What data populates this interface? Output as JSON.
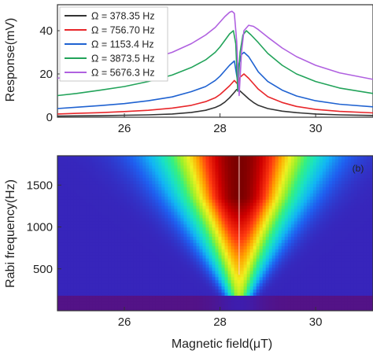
{
  "chart_data": [
    {
      "type": "line",
      "xlabel": "",
      "ylabel": "Response(mV)",
      "xlim": [
        24.6,
        31.2
      ],
      "ylim": [
        0,
        52
      ],
      "xticks": [
        26,
        28,
        30
      ],
      "xtick_labels": [
        "26",
        "28",
        "30"
      ],
      "yticks": [
        0,
        20,
        40
      ],
      "ytick_labels": [
        "0",
        "20",
        "40"
      ],
      "legend_position": "top-left",
      "series": [
        {
          "name": "Ω = 378.35 Hz",
          "color": "#333333",
          "x": [
            24.6,
            25.0,
            25.5,
            26.0,
            26.5,
            27.0,
            27.4,
            27.7,
            27.9,
            28.0,
            28.1,
            28.2,
            28.3,
            28.35,
            28.4,
            28.5,
            28.6,
            28.7,
            28.8,
            29.0,
            29.3,
            29.6,
            30.0,
            30.5,
            31.2
          ],
          "y": [
            0.5,
            0.6,
            0.7,
            0.9,
            1.1,
            1.5,
            2.2,
            3.2,
            4.5,
            5.5,
            7.0,
            9.0,
            11.5,
            12.8,
            12.5,
            10.5,
            8.5,
            6.8,
            5.5,
            4.0,
            2.8,
            2.1,
            1.5,
            1.1,
            0.8
          ]
        },
        {
          "name": "Ω = 756.70 Hz",
          "color": "#e8262a",
          "x": [
            24.6,
            25.0,
            25.5,
            26.0,
            26.5,
            27.0,
            27.4,
            27.7,
            27.9,
            28.0,
            28.1,
            28.2,
            28.3,
            28.38,
            28.42,
            28.5,
            28.6,
            28.7,
            28.8,
            29.0,
            29.3,
            29.6,
            30.0,
            30.5,
            31.2
          ],
          "y": [
            1.5,
            1.8,
            2.1,
            2.6,
            3.2,
            4.2,
            5.5,
            7.2,
            9.0,
            10.5,
            12.5,
            14.5,
            17.0,
            15.0,
            18.5,
            20.0,
            18.0,
            15.5,
            13.0,
            9.5,
            6.8,
            5.0,
            3.6,
            2.7,
            2.0
          ]
        },
        {
          "name": "Ω = 1153.4 Hz",
          "color": "#1f62d1",
          "x": [
            24.6,
            25.0,
            25.5,
            26.0,
            26.5,
            27.0,
            27.4,
            27.7,
            27.9,
            28.0,
            28.1,
            28.2,
            28.3,
            28.36,
            28.4,
            28.45,
            28.5,
            28.6,
            28.7,
            28.8,
            29.0,
            29.3,
            29.6,
            30.0,
            30.5,
            31.2
          ],
          "y": [
            4.0,
            4.6,
            5.4,
            6.3,
            7.6,
            9.4,
            11.8,
            14.2,
            17.0,
            19.0,
            21.5,
            24.0,
            26.0,
            18.0,
            25.0,
            29.0,
            30.0,
            28.0,
            24.5,
            21.0,
            16.5,
            12.5,
            9.8,
            7.6,
            6.0,
            4.8
          ]
        },
        {
          "name": "Ω = 3873.5 Hz",
          "color": "#22a35a",
          "x": [
            24.6,
            25.0,
            25.5,
            26.0,
            26.5,
            27.0,
            27.4,
            27.7,
            27.9,
            28.0,
            28.1,
            28.2,
            28.28,
            28.33,
            28.37,
            28.42,
            28.48,
            28.55,
            28.65,
            28.8,
            29.0,
            29.3,
            29.6,
            30.0,
            30.5,
            31.2
          ],
          "y": [
            10.0,
            11.0,
            12.5,
            14.2,
            16.5,
            19.5,
            23.0,
            26.5,
            30.0,
            32.5,
            35.5,
            38.5,
            40.0,
            34.0,
            12.0,
            30.0,
            38.0,
            40.0,
            38.0,
            34.5,
            29.5,
            24.0,
            20.0,
            16.5,
            13.5,
            11.0
          ]
        },
        {
          "name": "Ω = 5676.3 Hz",
          "color": "#b061e0",
          "x": [
            24.6,
            25.0,
            25.5,
            26.0,
            26.5,
            27.0,
            27.4,
            27.7,
            27.9,
            28.0,
            28.1,
            28.2,
            28.25,
            28.3,
            28.35,
            28.4,
            28.45,
            28.5,
            28.6,
            28.7,
            28.8,
            29.0,
            29.3,
            29.6,
            30.0,
            30.5,
            31.2
          ],
          "y": [
            18.0,
            19.5,
            21.5,
            23.5,
            26.5,
            30.0,
            34.0,
            38.0,
            41.5,
            44.0,
            46.5,
            48.5,
            49.0,
            48.0,
            35.0,
            10.0,
            30.0,
            40.0,
            42.5,
            42.0,
            40.5,
            37.0,
            32.0,
            28.0,
            24.0,
            20.5,
            17.5
          ]
        }
      ]
    },
    {
      "type": "heatmap",
      "annotation": "(b)",
      "xlabel": "Magnetic field(μT)",
      "ylabel": "Rabi frequency(Hz)",
      "xlim": [
        24.6,
        31.2
      ],
      "ylim": [
        0,
        1850
      ],
      "xticks": [
        26,
        28,
        30
      ],
      "xtick_labels": [
        "26",
        "28",
        "30"
      ],
      "yticks": [
        500,
        1000,
        1500
      ],
      "ytick_labels": [
        "500",
        "1000",
        "1500"
      ],
      "resonance_field": 28.4,
      "min_frequency": 180,
      "colormap": [
        "#5a0f7a",
        "#3a1fb5",
        "#1f5ff0",
        "#12b4f5",
        "#18e0c8",
        "#35f080",
        "#9af02a",
        "#f0f020",
        "#ffa500",
        "#ff3a10",
        "#d00000",
        "#7a0000"
      ]
    }
  ]
}
